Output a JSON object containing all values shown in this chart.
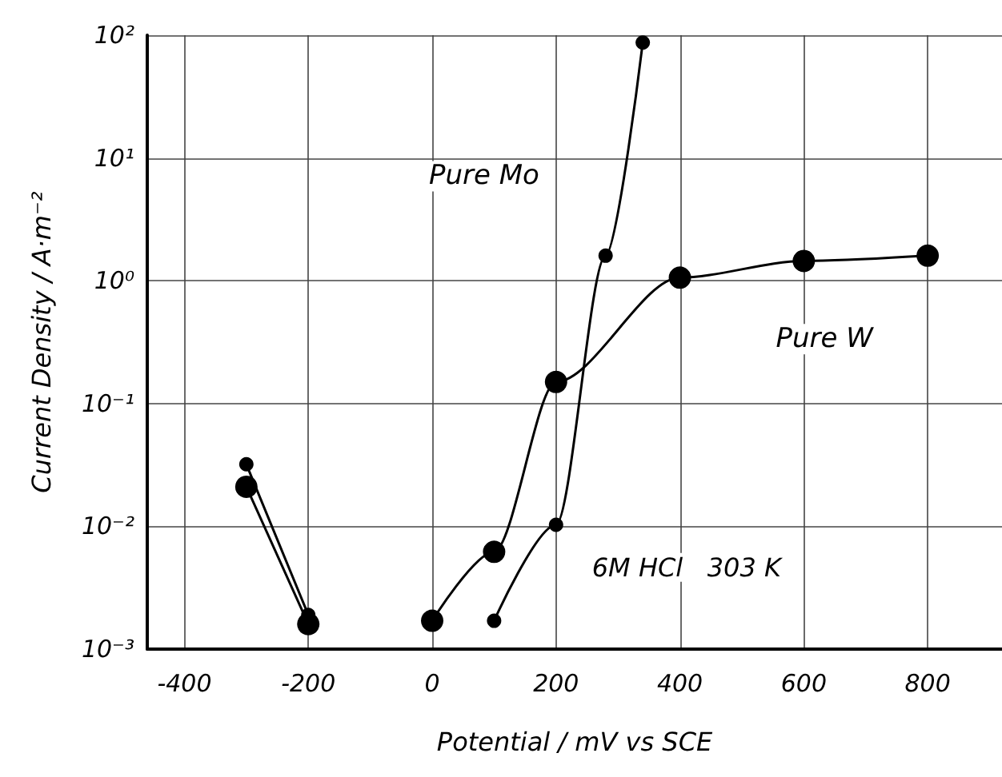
{
  "chart_data": {
    "type": "line",
    "xlabel": "Potential / mV vs SCE",
    "ylabel": "Current Density / A·m⁻²",
    "series": [
      {
        "name": "Pure Mo",
        "color": "#000000",
        "x": [
          -300,
          -200,
          -100,
          100,
          200,
          280,
          340
        ],
        "values": [
          0.032,
          0.0019,
          null,
          0.0017,
          0.0103,
          1.6,
          87
        ]
      },
      {
        "name": "Pure W",
        "color": "#000000",
        "x": [
          -300,
          -200,
          -100,
          0,
          100,
          200,
          400,
          600,
          800
        ],
        "values": [
          0.021,
          0.0016,
          null,
          0.0017,
          0.0062,
          0.15,
          1.06,
          1.45,
          1.6
        ]
      }
    ],
    "xlim": [
      -460,
      920
    ],
    "xticks": [
      -400,
      -200,
      0,
      200,
      400,
      600,
      800
    ],
    "ylim": [
      0.001,
      100
    ],
    "yticks": [
      {
        "value": 0.001,
        "label": "10⁻³"
      },
      {
        "value": 0.01,
        "label": "10⁻²"
      },
      {
        "value": 0.1,
        "label": "10⁻¹"
      },
      {
        "value": 1,
        "label": "10⁰"
      },
      {
        "value": 10,
        "label": "10¹"
      },
      {
        "value": 100,
        "label": "10²"
      }
    ],
    "log": "y",
    "grid": true,
    "legend": false,
    "marker": "circle",
    "line_style": "solid",
    "annotations": [
      "6M HCl   303 K"
    ]
  }
}
